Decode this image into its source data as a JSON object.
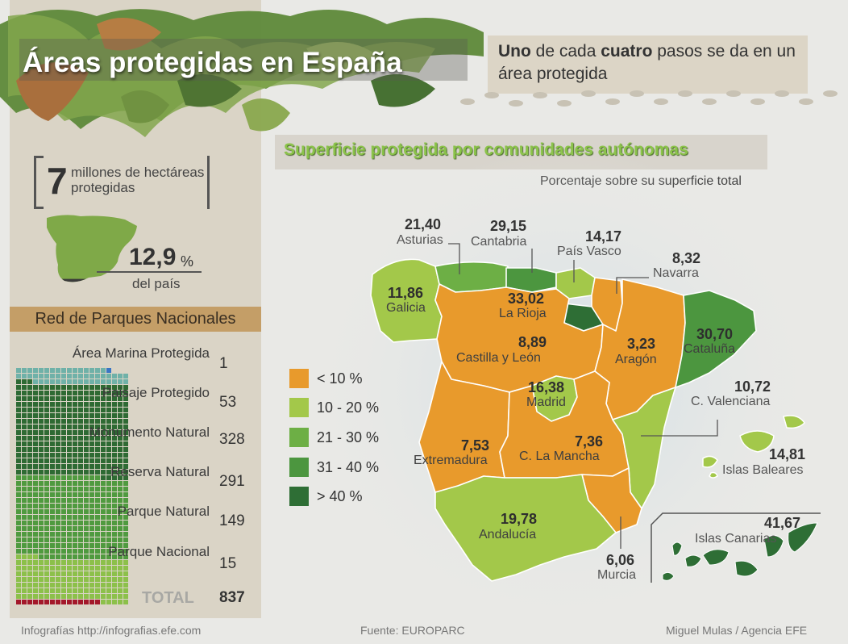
{
  "header": {
    "title": "Áreas protegidas en España",
    "subtitle_part1": "Uno",
    "subtitle_part2": " de cada ",
    "subtitle_part3": "cuatro",
    "subtitle_part4": " pasos se da en un área protegida"
  },
  "summary": {
    "hectares_number": "7",
    "hectares_text": "millones de hectáreas protegidas",
    "percent_value": "12,9",
    "percent_unit": "%",
    "percent_text": "del país",
    "percent_fraction": 0.129
  },
  "parks": {
    "header": "Red de Parques Nacionales",
    "items": [
      {
        "label": "Área Marina Protegida",
        "value": "1",
        "count": 1,
        "color": "#3a76c4"
      },
      {
        "label": "Paisaje Protegido",
        "value": "53",
        "count": 53,
        "color": "#6fb1a8"
      },
      {
        "label": "Monumento Natural",
        "value": "328",
        "count": 328,
        "color": "#2e6a33"
      },
      {
        "label": "Reserva Natural",
        "value": "291",
        "count": 291,
        "color": "#4f9a3f"
      },
      {
        "label": "Parque Natural",
        "value": "149",
        "count": 149,
        "color": "#8cc04a"
      },
      {
        "label": "Parque Nacional",
        "value": "15",
        "count": 15,
        "color": "#a3182a"
      }
    ],
    "total_label": "TOTAL",
    "total_value": "837"
  },
  "map": {
    "title": "Superficie protegida por comunidades autónomas",
    "subtitle": "Porcentaje sobre su superficie total",
    "legend": [
      {
        "label": "< 10 %",
        "color": "#e89a2c"
      },
      {
        "label": "10 - 20 %",
        "color": "#a3c84a"
      },
      {
        "label": "21 - 30 %",
        "color": "#6daf45"
      },
      {
        "label": "31 - 40 %",
        "color": "#4c963f"
      },
      {
        "label": "> 40 %",
        "color": "#2e6e35"
      }
    ],
    "regions": [
      {
        "name": "Asturias",
        "value": "21,40"
      },
      {
        "name": "Cantabria",
        "value": "29,15"
      },
      {
        "name": "País Vasco",
        "value": "14,17"
      },
      {
        "name": "Navarra",
        "value": "8,32"
      },
      {
        "name": "Galicia",
        "value": "11,86"
      },
      {
        "name": "La Rioja",
        "value": "33,02"
      },
      {
        "name": "Castilla y León",
        "value": "8,89"
      },
      {
        "name": "Aragón",
        "value": "3,23"
      },
      {
        "name": "Cataluña",
        "value": "30,70"
      },
      {
        "name": "Madrid",
        "value": "16,38"
      },
      {
        "name": "C. Valenciana",
        "value": "10,72"
      },
      {
        "name": "Extremadura",
        "value": "7,53"
      },
      {
        "name": "C. La Mancha",
        "value": "7,36"
      },
      {
        "name": "Islas Baleares",
        "value": "14,81"
      },
      {
        "name": "Andalucía",
        "value": "19,78"
      },
      {
        "name": "Islas Canarias",
        "value": "41,67"
      },
      {
        "name": "Murcia",
        "value": "6,06"
      }
    ]
  },
  "footer": {
    "left": "Infografías http://infografias.efe.com",
    "center": "Fuente: EUROPARC",
    "right": "Miguel Mulas / Agencia EFE"
  }
}
